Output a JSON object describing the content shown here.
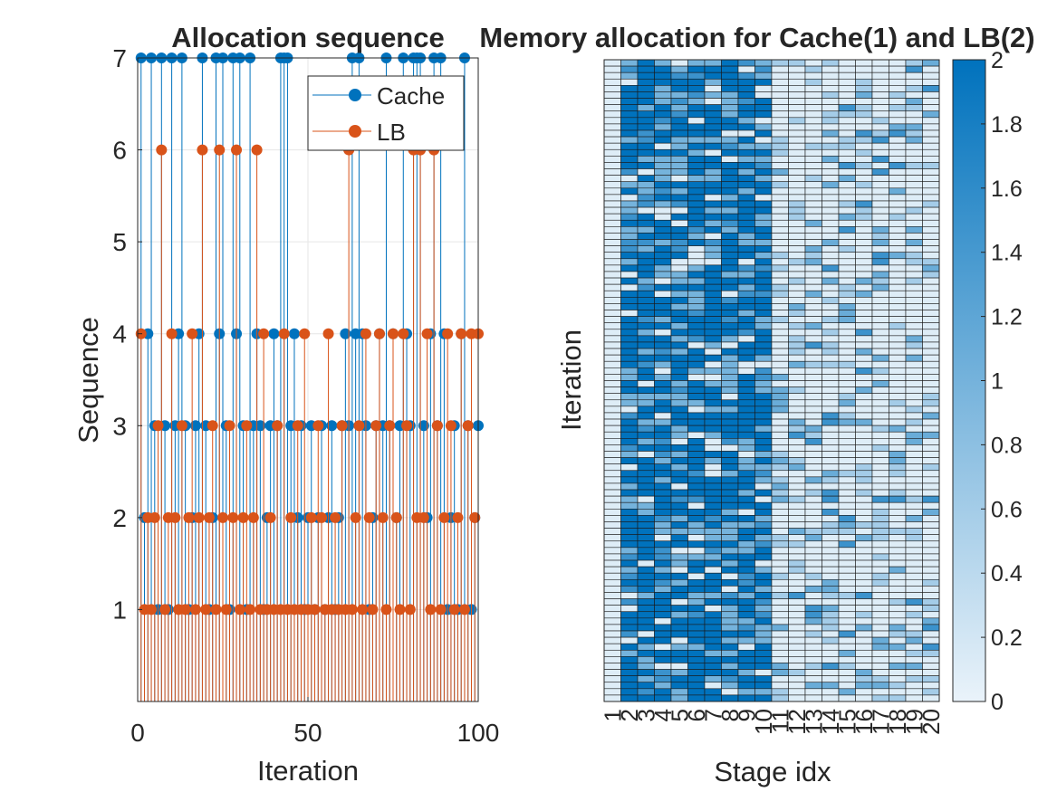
{
  "chart_data": [
    {
      "type": "stem",
      "title": "Allocation sequence",
      "xlabel": "Iteration",
      "ylabel": "Sequence",
      "xlim": [
        0,
        100
      ],
      "ylim": [
        0,
        7
      ],
      "xticks": [
        0,
        50,
        100
      ],
      "yticks": [
        1,
        2,
        3,
        4,
        5,
        6,
        7
      ],
      "grid": true,
      "legend_position": "top-right",
      "series": [
        {
          "name": "Cache",
          "color": "#0072BD",
          "x": [
            1,
            2,
            3,
            4,
            5,
            6,
            7,
            8,
            9,
            10,
            11,
            12,
            13,
            14,
            15,
            16,
            17,
            18,
            19,
            20,
            21,
            22,
            23,
            24,
            25,
            26,
            27,
            28,
            29,
            30,
            31,
            32,
            33,
            34,
            35,
            36,
            37,
            38,
            39,
            40,
            41,
            42,
            43,
            44,
            45,
            46,
            47,
            48,
            49,
            50,
            51,
            52,
            53,
            54,
            55,
            56,
            57,
            58,
            59,
            60,
            61,
            62,
            63,
            64,
            65,
            66,
            67,
            68,
            69,
            70,
            71,
            72,
            73,
            74,
            75,
            76,
            77,
            78,
            79,
            80,
            81,
            82,
            83,
            84,
            85,
            86,
            87,
            88,
            89,
            90,
            91,
            92,
            93,
            94,
            95,
            96,
            97,
            98,
            99,
            100
          ],
          "values": [
            7,
            2,
            4,
            7,
            3,
            1,
            7,
            3,
            1,
            7,
            3,
            4,
            7,
            3,
            1,
            2,
            3,
            4,
            7,
            3,
            1,
            2,
            7,
            4,
            7,
            3,
            1,
            7,
            4,
            7,
            3,
            1,
            7,
            3,
            4,
            3,
            1,
            2,
            3,
            4,
            3,
            7,
            7,
            7,
            3,
            4,
            2,
            3,
            1,
            2,
            3,
            1,
            2,
            3,
            1,
            2,
            3,
            1,
            2,
            3,
            4,
            3,
            7,
            4,
            7,
            4,
            3,
            1,
            2,
            3,
            4,
            3,
            7,
            3,
            4,
            2,
            3,
            7,
            4,
            3,
            7,
            7,
            7,
            3,
            2,
            4,
            7,
            3,
            7,
            4,
            1,
            2,
            3,
            1,
            4,
            7,
            3,
            1,
            2,
            3
          ]
        },
        {
          "name": "LB",
          "color": "#D95319",
          "x": [
            1,
            2,
            3,
            4,
            5,
            6,
            7,
            8,
            9,
            10,
            11,
            12,
            13,
            14,
            15,
            16,
            17,
            18,
            19,
            20,
            21,
            22,
            23,
            24,
            25,
            26,
            27,
            28,
            29,
            30,
            31,
            32,
            33,
            34,
            35,
            36,
            37,
            38,
            39,
            40,
            41,
            42,
            43,
            44,
            45,
            46,
            47,
            48,
            49,
            50,
            51,
            52,
            53,
            54,
            55,
            56,
            57,
            58,
            59,
            60,
            61,
            62,
            63,
            64,
            65,
            66,
            67,
            68,
            69,
            70,
            71,
            72,
            73,
            74,
            75,
            76,
            77,
            78,
            79,
            80,
            81,
            82,
            83,
            84,
            85,
            86,
            87,
            88,
            89,
            90,
            91,
            92,
            93,
            94,
            95,
            96,
            97,
            98,
            99,
            100
          ],
          "values": [
            4,
            1,
            2,
            1,
            2,
            3,
            6,
            1,
            2,
            4,
            2,
            1,
            3,
            1,
            2,
            4,
            1,
            2,
            6,
            1,
            2,
            3,
            1,
            6,
            2,
            1,
            3,
            2,
            6,
            1,
            2,
            3,
            1,
            2,
            6,
            1,
            4,
            1,
            2,
            1,
            3,
            1,
            4,
            1,
            2,
            1,
            3,
            1,
            4,
            1,
            2,
            1,
            3,
            2,
            1,
            4,
            1,
            2,
            1,
            3,
            1,
            6,
            1,
            2,
            3,
            1,
            4,
            2,
            1,
            3,
            4,
            2,
            1,
            3,
            4,
            2,
            1,
            4,
            3,
            1,
            6,
            2,
            6,
            2,
            4,
            1,
            6,
            3,
            1,
            2,
            4,
            3,
            1,
            2,
            4,
            1,
            3,
            4,
            2,
            4
          ]
        }
      ]
    },
    {
      "type": "heatmap",
      "title": "Memory allocation for Cache(1) and LB(2)",
      "xlabel": "Stage idx",
      "ylabel": "Iteration",
      "xticks": [
        "1",
        "2",
        "3",
        "4",
        "5",
        "6",
        "7",
        "8",
        "9",
        "10",
        "11",
        "12",
        "13",
        "14",
        "15",
        "16",
        "17",
        "18",
        "19",
        "20"
      ],
      "colorbar_ticks": [
        0,
        0.2,
        0.4,
        0.6,
        0.8,
        1,
        1.2,
        1.4,
        1.6,
        1.8,
        2
      ],
      "clim": [
        0,
        2
      ],
      "colormap_low": "#EAF3FA",
      "colormap_high": "#0072BD",
      "rows": 100,
      "cols": 20
    }
  ]
}
